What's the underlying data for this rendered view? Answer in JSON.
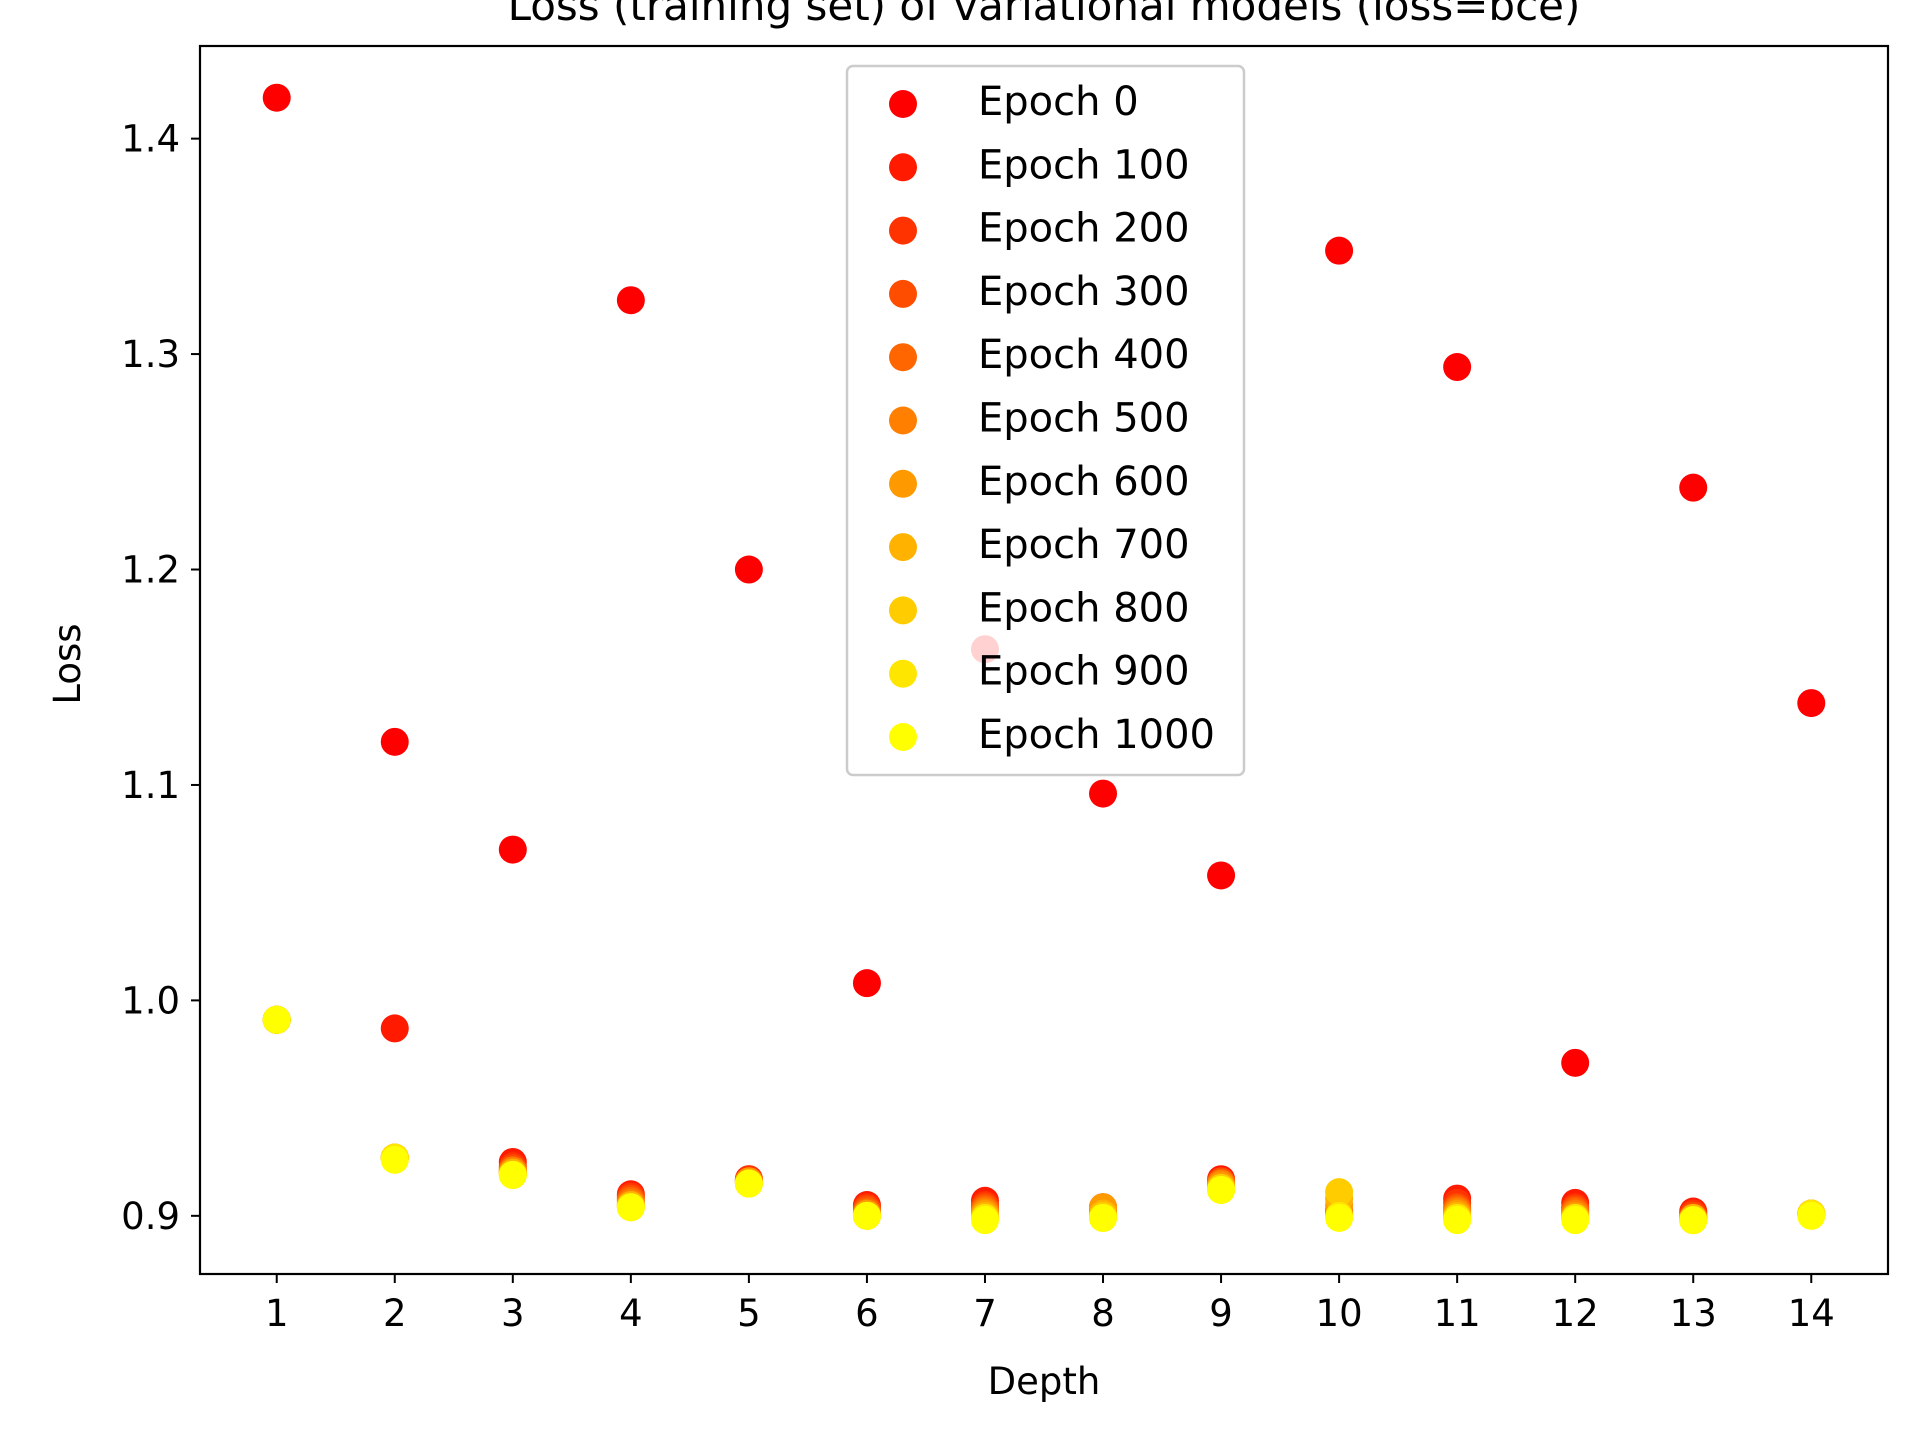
{
  "chart_data": {
    "type": "scatter",
    "title": "Loss (training set) of variational models (loss=bce)",
    "xlabel": "Depth",
    "ylabel": "Loss",
    "x": [
      1,
      2,
      3,
      4,
      5,
      6,
      7,
      8,
      9,
      10,
      11,
      12,
      13,
      14
    ],
    "xlim": [
      0.35,
      14.65
    ],
    "ylim": [
      0.873,
      1.443
    ],
    "xticks": [
      1,
      2,
      3,
      4,
      5,
      6,
      7,
      8,
      9,
      10,
      11,
      12,
      13,
      14
    ],
    "yticks": [
      0.9,
      1.0,
      1.1,
      1.2,
      1.3,
      1.4
    ],
    "ytick_labels": [
      "0.9",
      "1.0",
      "1.1",
      "1.2",
      "1.3",
      "1.4"
    ],
    "grid": false,
    "legend_position": "top-center",
    "series": [
      {
        "name": "Epoch 0",
        "color": "#ff0000",
        "values": [
          1.419,
          1.12,
          1.07,
          1.325,
          1.2,
          1.008,
          1.163,
          1.096,
          1.058,
          1.348,
          1.294,
          0.971,
          1.238,
          1.138
        ]
      },
      {
        "name": "Epoch 100",
        "color": "#ff1a00",
        "values": [
          0.991,
          0.987,
          0.925,
          0.91,
          0.917,
          0.905,
          0.907,
          0.903,
          0.917,
          0.902,
          0.908,
          0.906,
          0.902,
          0.901
        ]
      },
      {
        "name": "Epoch 200",
        "color": "#ff3300",
        "values": [
          0.991,
          0.927,
          0.923,
          0.909,
          0.917,
          0.904,
          0.905,
          0.903,
          0.916,
          0.901,
          0.906,
          0.904,
          0.901,
          0.901
        ]
      },
      {
        "name": "Epoch 300",
        "color": "#ff4d00",
        "values": [
          0.991,
          0.927,
          0.922,
          0.908,
          0.916,
          0.903,
          0.904,
          0.904,
          0.916,
          0.901,
          0.904,
          0.903,
          0.9,
          0.901
        ]
      },
      {
        "name": "Epoch 400",
        "color": "#ff6600",
        "values": [
          0.991,
          0.927,
          0.921,
          0.907,
          0.916,
          0.902,
          0.903,
          0.904,
          0.915,
          0.902,
          0.903,
          0.902,
          0.899,
          0.901
        ]
      },
      {
        "name": "Epoch 500",
        "color": "#ff8000",
        "values": [
          0.991,
          0.927,
          0.921,
          0.906,
          0.916,
          0.901,
          0.902,
          0.904,
          0.915,
          0.903,
          0.902,
          0.901,
          0.899,
          0.901
        ]
      },
      {
        "name": "Epoch 600",
        "color": "#ff9900",
        "values": [
          0.991,
          0.927,
          0.92,
          0.905,
          0.916,
          0.901,
          0.901,
          0.904,
          0.914,
          0.905,
          0.901,
          0.9,
          0.899,
          0.901
        ]
      },
      {
        "name": "Epoch 700",
        "color": "#ffb300",
        "values": [
          0.991,
          0.927,
          0.92,
          0.905,
          0.915,
          0.9,
          0.9,
          0.901,
          0.913,
          0.908,
          0.9,
          0.899,
          0.899,
          0.901
        ]
      },
      {
        "name": "Epoch 800",
        "color": "#ffcc00",
        "values": [
          0.991,
          0.927,
          0.919,
          0.904,
          0.915,
          0.9,
          0.899,
          0.9,
          0.913,
          0.911,
          0.899,
          0.899,
          0.898,
          0.901
        ]
      },
      {
        "name": "Epoch 900",
        "color": "#ffe600",
        "values": [
          0.991,
          0.927,
          0.919,
          0.904,
          0.915,
          0.9,
          0.899,
          0.899,
          0.912,
          0.9,
          0.899,
          0.899,
          0.898,
          0.901
        ]
      },
      {
        "name": "Epoch 1000",
        "color": "#ffff00",
        "values": [
          0.991,
          0.926,
          0.919,
          0.904,
          0.915,
          0.9,
          0.898,
          0.899,
          0.912,
          0.899,
          0.898,
          0.898,
          0.898,
          0.9
        ]
      }
    ]
  }
}
